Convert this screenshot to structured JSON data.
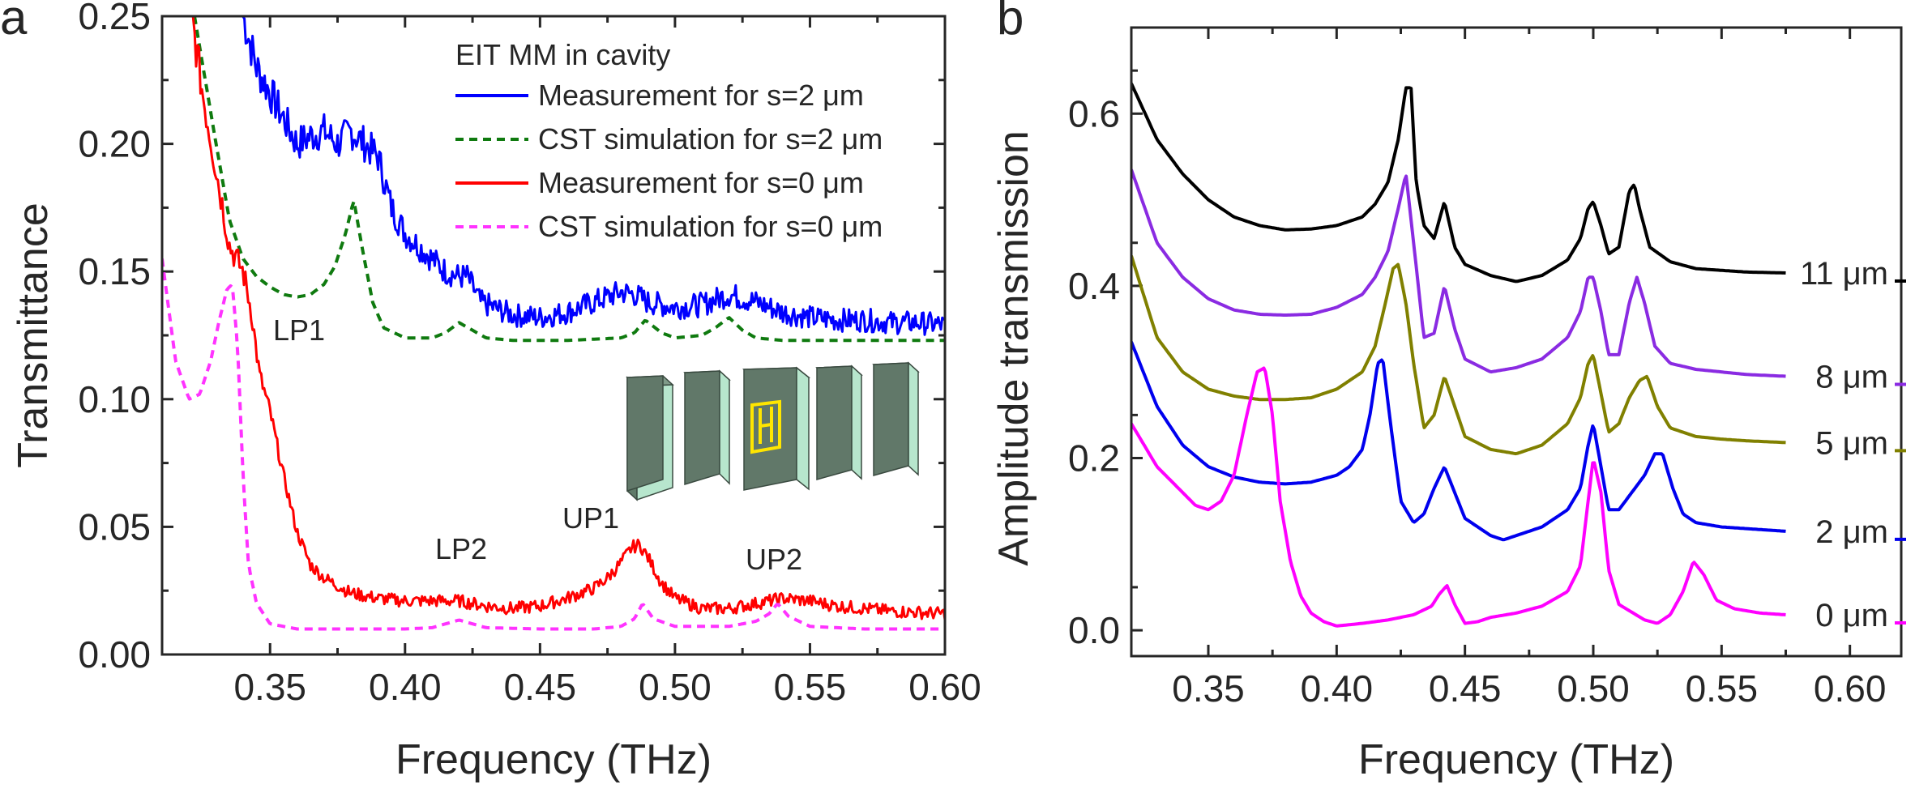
{
  "figure": {
    "panel_a_letter": "a",
    "panel_b_letter": "b"
  },
  "chart_data": [
    {
      "type": "line",
      "panel": "a",
      "xlabel": "Frequency (THz)",
      "ylabel": "Transmittance",
      "xlim": [
        0.31,
        0.6
      ],
      "ylim": [
        0.0,
        0.25
      ],
      "xticks": [
        "0.35",
        "0.40",
        "0.45",
        "0.50",
        "0.55",
        "0.60"
      ],
      "yticks": [
        "0.00",
        "0.05",
        "0.10",
        "0.15",
        "0.20",
        "0.25"
      ],
      "legend_title": "EIT MM in cavity",
      "legend_position": "top-right",
      "annotations": [
        "LP1",
        "LP2",
        "UP1",
        "UP2"
      ],
      "inset": "cavity schematic with EIT metamaterial between mirror slabs",
      "series": [
        {
          "name": "Measurement for s=2 μm",
          "color": "#0000ff",
          "dash": false,
          "noisy": true,
          "x": [
            0.34,
            0.345,
            0.35,
            0.355,
            0.36,
            0.365,
            0.37,
            0.375,
            0.38,
            0.385,
            0.39,
            0.395,
            0.4,
            0.405,
            0.41,
            0.415,
            0.42,
            0.423,
            0.428,
            0.435,
            0.44,
            0.45,
            0.46,
            0.47,
            0.48,
            0.485,
            0.49,
            0.5,
            0.51,
            0.52,
            0.53,
            0.54,
            0.55,
            0.56,
            0.57,
            0.58,
            0.59,
            0.6
          ],
          "y": [
            0.25,
            0.23,
            0.22,
            0.21,
            0.2,
            0.203,
            0.205,
            0.2,
            0.205,
            0.2,
            0.195,
            0.175,
            0.165,
            0.16,
            0.155,
            0.15,
            0.148,
            0.148,
            0.138,
            0.135,
            0.133,
            0.132,
            0.134,
            0.138,
            0.142,
            0.141,
            0.138,
            0.136,
            0.137,
            0.141,
            0.138,
            0.134,
            0.132,
            0.131,
            0.131,
            0.13,
            0.13,
            0.129
          ]
        },
        {
          "name": "CST simulation for s=2 μm",
          "color": "#0f7a0f",
          "dash": true,
          "noisy": false,
          "x": [
            0.322,
            0.33,
            0.335,
            0.34,
            0.345,
            0.35,
            0.355,
            0.36,
            0.365,
            0.37,
            0.374,
            0.378,
            0.381,
            0.384,
            0.388,
            0.392,
            0.4,
            0.41,
            0.415,
            0.42,
            0.425,
            0.43,
            0.44,
            0.46,
            0.48,
            0.485,
            0.489,
            0.495,
            0.5,
            0.51,
            0.515,
            0.52,
            0.525,
            0.53,
            0.54,
            0.56,
            0.58,
            0.6
          ],
          "y": [
            0.25,
            0.2,
            0.17,
            0.155,
            0.148,
            0.144,
            0.141,
            0.14,
            0.141,
            0.145,
            0.152,
            0.165,
            0.178,
            0.16,
            0.138,
            0.128,
            0.124,
            0.124,
            0.126,
            0.13,
            0.127,
            0.124,
            0.123,
            0.123,
            0.124,
            0.126,
            0.131,
            0.126,
            0.124,
            0.125,
            0.128,
            0.132,
            0.127,
            0.124,
            0.123,
            0.123,
            0.123,
            0.123
          ]
        },
        {
          "name": "Measurement for s=0 μm",
          "color": "#ff0000",
          "dash": false,
          "noisy": true,
          "x": [
            0.321,
            0.325,
            0.33,
            0.335,
            0.34,
            0.343,
            0.346,
            0.35,
            0.355,
            0.36,
            0.365,
            0.37,
            0.38,
            0.39,
            0.4,
            0.41,
            0.42,
            0.43,
            0.44,
            0.45,
            0.46,
            0.47,
            0.475,
            0.48,
            0.484,
            0.487,
            0.49,
            0.495,
            0.5,
            0.51,
            0.52,
            0.53,
            0.54,
            0.55,
            0.56,
            0.58,
            0.6
          ],
          "y": [
            0.25,
            0.22,
            0.19,
            0.16,
            0.15,
            0.135,
            0.11,
            0.095,
            0.07,
            0.048,
            0.035,
            0.03,
            0.024,
            0.022,
            0.021,
            0.021,
            0.021,
            0.019,
            0.018,
            0.019,
            0.022,
            0.026,
            0.03,
            0.036,
            0.042,
            0.043,
            0.038,
            0.028,
            0.022,
            0.018,
            0.018,
            0.02,
            0.022,
            0.021,
            0.019,
            0.017,
            0.016
          ]
        },
        {
          "name": "CST simulation for s=0 μm",
          "color": "#ff33ff",
          "dash": true,
          "noisy": false,
          "x": [
            0.31,
            0.315,
            0.32,
            0.324,
            0.328,
            0.331,
            0.334,
            0.336,
            0.338,
            0.34,
            0.342,
            0.345,
            0.35,
            0.36,
            0.38,
            0.4,
            0.41,
            0.415,
            0.42,
            0.425,
            0.43,
            0.45,
            0.47,
            0.48,
            0.485,
            0.488,
            0.492,
            0.5,
            0.52,
            0.53,
            0.535,
            0.538,
            0.542,
            0.55,
            0.57,
            0.6
          ],
          "y": [
            0.155,
            0.115,
            0.1,
            0.102,
            0.115,
            0.13,
            0.143,
            0.145,
            0.12,
            0.07,
            0.035,
            0.02,
            0.012,
            0.01,
            0.01,
            0.01,
            0.0105,
            0.012,
            0.0135,
            0.012,
            0.0105,
            0.01,
            0.01,
            0.011,
            0.014,
            0.02,
            0.014,
            0.011,
            0.011,
            0.013,
            0.016,
            0.02,
            0.015,
            0.011,
            0.01,
            0.01
          ]
        }
      ]
    },
    {
      "type": "line",
      "panel": "b",
      "xlabel": "Frequency (THz)",
      "ylabel": "Amplitude transmission",
      "xlim": [
        0.32,
        0.62
      ],
      "ylim": [
        -0.03,
        0.7
      ],
      "xticks": [
        "0.35",
        "0.40",
        "0.45",
        "0.50",
        "0.55",
        "0.60"
      ],
      "yticks": [
        "0.0",
        "0.2",
        "0.4",
        "0.6"
      ],
      "series": [
        {
          "name": "11 μm",
          "color": "#000000",
          "x": [
            0.32,
            0.33,
            0.34,
            0.35,
            0.36,
            0.37,
            0.38,
            0.39,
            0.4,
            0.41,
            0.415,
            0.42,
            0.424,
            0.427,
            0.429,
            0.431,
            0.434,
            0.438,
            0.442,
            0.446,
            0.45,
            0.46,
            0.47,
            0.48,
            0.49,
            0.495,
            0.498,
            0.5,
            0.503,
            0.506,
            0.51,
            0.514,
            0.516,
            0.518,
            0.522,
            0.53,
            0.54,
            0.55,
            0.56,
            0.575
          ],
          "y": [
            0.635,
            0.57,
            0.53,
            0.5,
            0.48,
            0.47,
            0.465,
            0.466,
            0.47,
            0.48,
            0.495,
            0.52,
            0.57,
            0.63,
            0.63,
            0.52,
            0.47,
            0.455,
            0.498,
            0.445,
            0.425,
            0.412,
            0.405,
            0.412,
            0.43,
            0.455,
            0.49,
            0.498,
            0.47,
            0.437,
            0.445,
            0.51,
            0.518,
            0.49,
            0.445,
            0.428,
            0.42,
            0.418,
            0.416,
            0.415
          ]
        },
        {
          "name": "8 μm",
          "color": "#8a2be2",
          "x": [
            0.32,
            0.33,
            0.34,
            0.35,
            0.36,
            0.37,
            0.38,
            0.39,
            0.4,
            0.41,
            0.415,
            0.42,
            0.424,
            0.427,
            0.43,
            0.434,
            0.438,
            0.442,
            0.446,
            0.45,
            0.46,
            0.47,
            0.48,
            0.49,
            0.495,
            0.498,
            0.5,
            0.503,
            0.506,
            0.51,
            0.514,
            0.517,
            0.52,
            0.524,
            0.53,
            0.54,
            0.55,
            0.56,
            0.575
          ],
          "y": [
            0.535,
            0.45,
            0.41,
            0.385,
            0.372,
            0.367,
            0.366,
            0.367,
            0.375,
            0.39,
            0.41,
            0.44,
            0.49,
            0.53,
            0.45,
            0.34,
            0.345,
            0.4,
            0.35,
            0.315,
            0.3,
            0.305,
            0.315,
            0.34,
            0.37,
            0.41,
            0.41,
            0.37,
            0.32,
            0.32,
            0.38,
            0.41,
            0.38,
            0.33,
            0.31,
            0.303,
            0.3,
            0.297,
            0.295
          ]
        },
        {
          "name": "5 μm",
          "color": "#808000",
          "x": [
            0.32,
            0.33,
            0.34,
            0.35,
            0.36,
            0.37,
            0.38,
            0.39,
            0.4,
            0.405,
            0.41,
            0.415,
            0.419,
            0.422,
            0.424,
            0.427,
            0.43,
            0.434,
            0.438,
            0.442,
            0.446,
            0.45,
            0.46,
            0.47,
            0.48,
            0.49,
            0.495,
            0.498,
            0.5,
            0.503,
            0.506,
            0.51,
            0.514,
            0.518,
            0.521,
            0.525,
            0.53,
            0.54,
            0.55,
            0.56,
            0.575
          ],
          "y": [
            0.435,
            0.34,
            0.3,
            0.28,
            0.272,
            0.268,
            0.268,
            0.27,
            0.28,
            0.29,
            0.3,
            0.33,
            0.38,
            0.42,
            0.425,
            0.38,
            0.31,
            0.235,
            0.25,
            0.295,
            0.26,
            0.225,
            0.21,
            0.205,
            0.215,
            0.24,
            0.27,
            0.31,
            0.32,
            0.275,
            0.23,
            0.24,
            0.27,
            0.29,
            0.295,
            0.26,
            0.235,
            0.225,
            0.222,
            0.22,
            0.218
          ]
        },
        {
          "name": "2 μm",
          "color": "#0000ee",
          "x": [
            0.32,
            0.33,
            0.34,
            0.35,
            0.36,
            0.37,
            0.38,
            0.39,
            0.4,
            0.405,
            0.41,
            0.413,
            0.416,
            0.418,
            0.421,
            0.425,
            0.43,
            0.434,
            0.438,
            0.442,
            0.446,
            0.45,
            0.46,
            0.465,
            0.47,
            0.48,
            0.49,
            0.495,
            0.498,
            0.5,
            0.503,
            0.506,
            0.51,
            0.515,
            0.52,
            0.524,
            0.527,
            0.531,
            0.535,
            0.54,
            0.55,
            0.56,
            0.575
          ],
          "y": [
            0.335,
            0.26,
            0.215,
            0.19,
            0.178,
            0.172,
            0.17,
            0.172,
            0.18,
            0.19,
            0.21,
            0.25,
            0.31,
            0.315,
            0.24,
            0.15,
            0.125,
            0.135,
            0.165,
            0.19,
            0.16,
            0.13,
            0.11,
            0.105,
            0.11,
            0.12,
            0.14,
            0.165,
            0.215,
            0.24,
            0.19,
            0.14,
            0.14,
            0.16,
            0.18,
            0.205,
            0.205,
            0.165,
            0.135,
            0.125,
            0.12,
            0.118,
            0.115
          ]
        },
        {
          "name": "0 μm",
          "color": "#ff00ff",
          "x": [
            0.32,
            0.33,
            0.34,
            0.345,
            0.35,
            0.355,
            0.36,
            0.365,
            0.369,
            0.372,
            0.375,
            0.378,
            0.382,
            0.386,
            0.39,
            0.395,
            0.4,
            0.41,
            0.42,
            0.43,
            0.437,
            0.44,
            0.443,
            0.446,
            0.45,
            0.455,
            0.46,
            0.47,
            0.48,
            0.49,
            0.495,
            0.498,
            0.5,
            0.503,
            0.506,
            0.51,
            0.52,
            0.525,
            0.53,
            0.535,
            0.539,
            0.543,
            0.548,
            0.555,
            0.565,
            0.575
          ],
          "y": [
            0.24,
            0.19,
            0.16,
            0.145,
            0.14,
            0.15,
            0.18,
            0.25,
            0.3,
            0.305,
            0.25,
            0.15,
            0.08,
            0.04,
            0.02,
            0.01,
            0.005,
            0.008,
            0.012,
            0.018,
            0.028,
            0.042,
            0.052,
            0.03,
            0.008,
            0.01,
            0.015,
            0.02,
            0.028,
            0.045,
            0.075,
            0.15,
            0.2,
            0.16,
            0.07,
            0.03,
            0.012,
            0.008,
            0.018,
            0.045,
            0.08,
            0.065,
            0.035,
            0.025,
            0.02,
            0.018
          ]
        }
      ]
    }
  ]
}
